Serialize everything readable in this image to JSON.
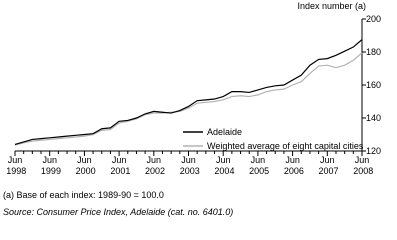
{
  "chart_data": {
    "type": "line",
    "y_axis_label": "Index number (a)",
    "categories": [
      "Jun 1998",
      null,
      null,
      null,
      "Jun 1999",
      null,
      null,
      null,
      "Jun 2000",
      null,
      null,
      null,
      "Jun 2001",
      null,
      null,
      null,
      "Jun 2002",
      null,
      null,
      null,
      "Jun 2003",
      null,
      null,
      null,
      "Jun 2004",
      null,
      null,
      null,
      "Jun 2005",
      null,
      null,
      null,
      "Jun 2006",
      null,
      null,
      null,
      "Jun 2007",
      null,
      null,
      null,
      "Jun 2008"
    ],
    "series": [
      {
        "name": "Adelaide",
        "color": "#000000",
        "values": [
          124,
          125.5,
          127,
          127.5,
          128,
          128.5,
          129,
          129.5,
          130,
          130.5,
          133.5,
          134,
          138,
          138.5,
          140,
          142.5,
          144,
          143.5,
          143,
          144.5,
          147,
          150.5,
          151,
          151.5,
          153,
          156,
          156,
          155.5,
          157,
          158.5,
          159.5,
          160,
          163,
          166,
          172,
          175.5,
          176,
          178,
          180.5,
          183,
          187.5
        ]
      },
      {
        "name": "Weighted average of eight capital cities",
        "color": "#b3b3b3",
        "values": [
          123.5,
          125,
          126,
          126.5,
          127,
          127.5,
          128,
          128.5,
          129,
          130,
          132.5,
          133,
          137,
          138,
          139.5,
          142,
          143,
          143,
          143.5,
          144,
          146,
          149,
          149.5,
          150,
          151,
          153,
          153.5,
          153,
          154,
          156,
          157,
          157.5,
          160,
          162,
          167,
          171.5,
          172,
          170.5,
          172,
          175,
          179.5
        ]
      }
    ],
    "ylim": [
      120,
      200
    ],
    "yticks": [
      120,
      140,
      160,
      180,
      200
    ],
    "legend": "lower-right",
    "footnotes": [
      "(a) Base of each index: 1989-90 = 100.0",
      "Source: Consumer Price Index, Adelaide (cat. no. 6401.0)"
    ]
  }
}
